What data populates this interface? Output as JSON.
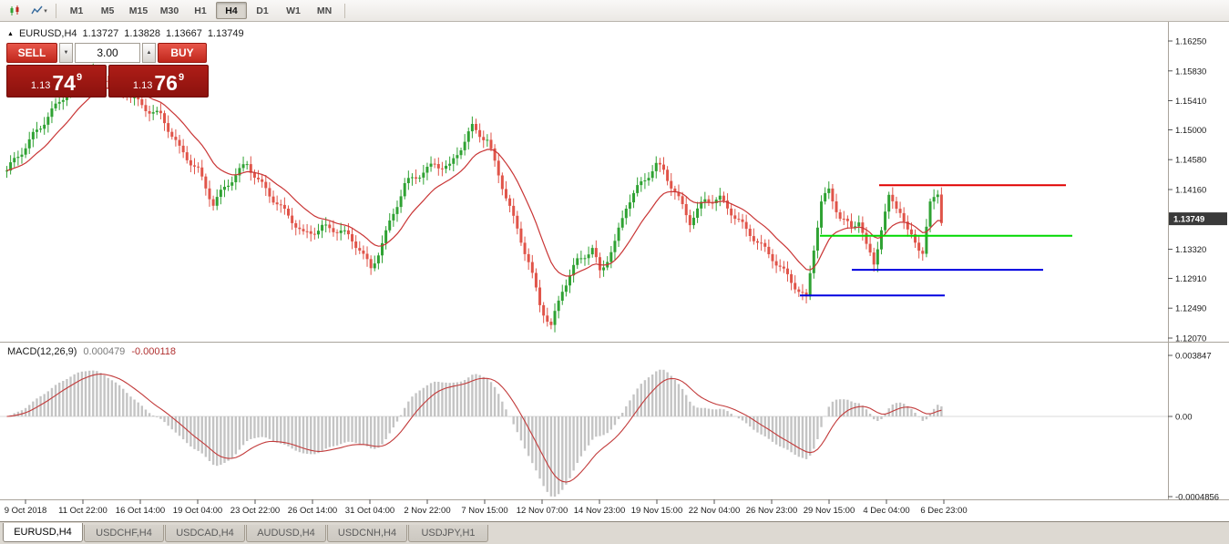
{
  "toolbar": {
    "timeframes": [
      "M1",
      "M5",
      "M15",
      "M30",
      "H1",
      "H4",
      "D1",
      "W1",
      "MN"
    ],
    "active_timeframe": "H4",
    "icons": [
      {
        "name": "chart-type-icon"
      },
      {
        "name": "indicators-icon"
      }
    ]
  },
  "icons": {
    "expand": "▲",
    "dropdown": "▾",
    "spinner_down": "▼",
    "spinner_up": "▲"
  },
  "chart_header": {
    "symbol": "EURUSD,H4",
    "open": "1.13727",
    "high": "1.13828",
    "low": "1.13667",
    "close": "1.13749"
  },
  "trade_panel": {
    "sell_label": "SELL",
    "buy_label": "BUY",
    "lot_size": "3.00",
    "sell_price": {
      "big_figure": "1.13",
      "pips": "74",
      "pipette": "9"
    },
    "buy_price": {
      "big_figure": "1.13",
      "pips": "76",
      "pipette": "9"
    },
    "button_red": "#c0271c",
    "price_box_red": "#8c120e"
  },
  "price_axis": {
    "ticks": [
      "1.16250",
      "1.15830",
      "1.15410",
      "1.15000",
      "1.14580",
      "1.14160",
      "1.13320",
      "1.12910",
      "1.12490",
      "1.12070"
    ],
    "current": "1.13749",
    "current_badge_color": "#3a3a3a"
  },
  "time_axis": {
    "ticks": [
      "9 Oct 2018",
      "11 Oct 22:00",
      "16 Oct 14:00",
      "19 Oct 04:00",
      "23 Oct 22:00",
      "26 Oct 14:00",
      "31 Oct 04:00",
      "2 Nov 22:00",
      "7 Nov 15:00",
      "12 Nov 07:00",
      "14 Nov 23:00",
      "19 Nov 15:00",
      "22 Nov 04:00",
      "26 Nov 23:00",
      "29 Nov 15:00",
      "4 Dec 04:00",
      "6 Dec 23:00"
    ]
  },
  "macd": {
    "label": "MACD(12,26,9)",
    "value": "0.000479",
    "signal_value": "-0.000118",
    "scale_top": "0.003847",
    "scale_zero": "0.00",
    "scale_bottom": "-0.0004856"
  },
  "tabs": [
    {
      "label": "EURUSD,H4",
      "active": true
    },
    {
      "label": "USDCHF,H4",
      "active": false
    },
    {
      "label": "USDCAD,H4",
      "active": false
    },
    {
      "label": "AUDUSD,H4",
      "active": false
    },
    {
      "label": "USDCNH,H4",
      "active": false
    },
    {
      "label": "USDJPY,H1",
      "active": false
    }
  ],
  "chart_data": {
    "type": "candlestick",
    "symbol": "EURUSD",
    "timeframe": "H4",
    "title": "EURUSD,H4",
    "ohlc_display": {
      "open": 1.13727,
      "high": 1.13828,
      "low": 1.13667,
      "close": 1.13749
    },
    "price_scale": {
      "min": 1.1207,
      "max": 1.1625
    },
    "candle_count": 250,
    "close_waypoints": [
      [
        0,
        1.144
      ],
      [
        7,
        1.1495
      ],
      [
        13,
        1.153
      ],
      [
        20,
        1.1578
      ],
      [
        22,
        1.1585
      ],
      [
        27,
        1.157
      ],
      [
        32,
        1.155
      ],
      [
        41,
        1.152
      ],
      [
        46,
        1.147
      ],
      [
        51,
        1.1445
      ],
      [
        55,
        1.1398
      ],
      [
        60,
        1.1428
      ],
      [
        64,
        1.1452
      ],
      [
        69,
        1.1418
      ],
      [
        74,
        1.1382
      ],
      [
        79,
        1.1352
      ],
      [
        84,
        1.1366
      ],
      [
        89,
        1.1356
      ],
      [
        94,
        1.1332
      ],
      [
        97,
        1.1306
      ],
      [
        101,
        1.1356
      ],
      [
        106,
        1.142
      ],
      [
        111,
        1.1442
      ],
      [
        114,
        1.1455
      ],
      [
        118,
        1.1447
      ],
      [
        122,
        1.1482
      ],
      [
        124,
        1.1502
      ],
      [
        128,
        1.1488
      ],
      [
        131,
        1.144
      ],
      [
        135,
        1.1372
      ],
      [
        139,
        1.1312
      ],
      [
        142,
        1.1256
      ],
      [
        145,
        1.1226
      ],
      [
        148,
        1.1276
      ],
      [
        152,
        1.1312
      ],
      [
        156,
        1.1332
      ],
      [
        158,
        1.1302
      ],
      [
        162,
        1.1342
      ],
      [
        165,
        1.1392
      ],
      [
        169,
        1.1422
      ],
      [
        173,
        1.1452
      ],
      [
        175,
        1.1446
      ],
      [
        179,
        1.1402
      ],
      [
        182,
        1.1368
      ],
      [
        186,
        1.14
      ],
      [
        190,
        1.1406
      ],
      [
        193,
        1.1386
      ],
      [
        197,
        1.1356
      ],
      [
        200,
        1.134
      ],
      [
        204,
        1.1322
      ],
      [
        208,
        1.1296
      ],
      [
        211,
        1.1272
      ],
      [
        213,
        1.1258
      ],
      [
        215,
        1.1332
      ],
      [
        217,
        1.1398
      ],
      [
        219,
        1.1416
      ],
      [
        222,
        1.138
      ],
      [
        225,
        1.1362
      ],
      [
        227,
        1.1372
      ],
      [
        229,
        1.1332
      ],
      [
        231,
        1.131
      ],
      [
        233,
        1.1362
      ],
      [
        235,
        1.1406
      ],
      [
        238,
        1.139
      ],
      [
        240,
        1.1356
      ],
      [
        243,
        1.1332
      ],
      [
        244,
        1.1326
      ],
      [
        246,
        1.1392
      ],
      [
        248,
        1.1412
      ],
      [
        249,
        1.1375
      ]
    ],
    "moving_average": {
      "type": "EMA",
      "period": 15,
      "color": "#c93535"
    },
    "macd_indicator": {
      "fast": 12,
      "slow": 26,
      "signal": 9,
      "value": 0.000479,
      "signal_value": -0.000118
    },
    "trend_lines": [
      {
        "name": "resistance-red",
        "price": 1.1422,
        "from": 0.753,
        "to": 0.913,
        "color": "#e00000",
        "width": 2
      },
      {
        "name": "support-green",
        "price": 1.1351,
        "from": 0.702,
        "to": 0.918,
        "color": "#00d800",
        "width": 2
      },
      {
        "name": "support-blue-1",
        "price": 1.1303,
        "from": 0.729,
        "to": 0.893,
        "color": "#0000e0",
        "width": 2
      },
      {
        "name": "support-blue-2",
        "price": 1.1267,
        "from": 0.685,
        "to": 0.809,
        "color": "#0000e0",
        "width": 2
      }
    ],
    "colors": {
      "up": "#2fa233",
      "down": "#e05449",
      "ma": "#c93535",
      "histogram": "#c4c4c4",
      "signal": "#c23a3a",
      "background": "#ffffff"
    }
  }
}
